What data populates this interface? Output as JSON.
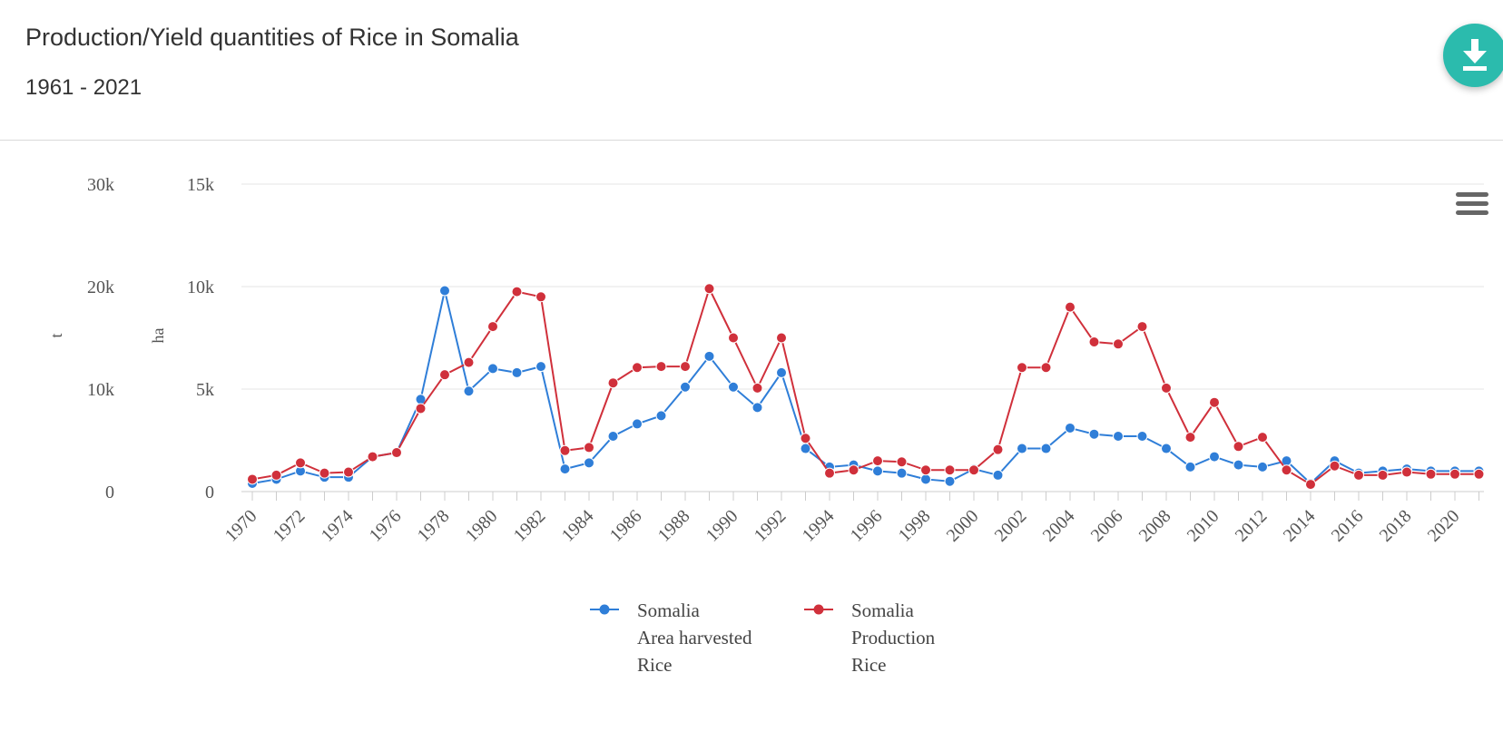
{
  "header": {
    "title": "Production/Yield quantities of Rice in Somalia",
    "subtitle": "1961 - 2021"
  },
  "toolbar": {
    "download_icon": "download-icon",
    "menu_icon": "hamburger-menu-icon"
  },
  "chart_data": {
    "type": "line",
    "x": [
      1970,
      1971,
      1972,
      1973,
      1974,
      1975,
      1976,
      1977,
      1978,
      1979,
      1980,
      1981,
      1982,
      1983,
      1984,
      1985,
      1986,
      1987,
      1988,
      1989,
      1990,
      1991,
      1992,
      1993,
      1994,
      1995,
      1996,
      1997,
      1998,
      1999,
      2000,
      2001,
      2002,
      2003,
      2004,
      2005,
      2006,
      2007,
      2008,
      2009,
      2010,
      2011,
      2012,
      2013,
      2014,
      2015,
      2016,
      2017,
      2018,
      2019,
      2020,
      2021
    ],
    "x_tick_labels": [
      "1970",
      "1972",
      "1974",
      "1976",
      "1978",
      "1980",
      "1982",
      "1984",
      "1986",
      "1988",
      "1990",
      "1992",
      "1994",
      "1996",
      "1998",
      "2000",
      "2002",
      "2004",
      "2006",
      "2008",
      "2010",
      "2012",
      "2014",
      "2016",
      "2018",
      "2020"
    ],
    "axes": {
      "left_outer": {
        "label": "t",
        "range": [
          0,
          30000
        ],
        "ticks": [
          "0",
          "10k",
          "20k",
          "30k"
        ],
        "tick_values": [
          0,
          10000,
          20000,
          30000
        ]
      },
      "left_inner": {
        "label": "ha",
        "range": [
          0,
          15000
        ],
        "ticks": [
          "0",
          "5k",
          "10k",
          "15k"
        ],
        "tick_values": [
          0,
          5000,
          10000,
          15000
        ]
      }
    },
    "grid": true,
    "legend_position": "bottom-center",
    "series": [
      {
        "name_lines": [
          "Somalia",
          "Area harvested",
          "Rice"
        ],
        "axis": "ha",
        "color": "#2f7ed8",
        "values": [
          400,
          600,
          1000,
          700,
          700,
          1700,
          1900,
          4500,
          9800,
          4900,
          6000,
          5800,
          6100,
          1100,
          1400,
          2700,
          3300,
          3700,
          5100,
          6600,
          5100,
          4100,
          5800,
          2100,
          1200,
          1300,
          1000,
          900,
          600,
          500,
          1100,
          800,
          2100,
          2100,
          3100,
          2800,
          2700,
          2700,
          2100,
          1200,
          1700,
          1300,
          1200,
          1500,
          400,
          1500,
          900,
          1000,
          1100,
          1000,
          1000,
          1000
        ]
      },
      {
        "name_lines": [
          "Somalia",
          "Production",
          "Rice"
        ],
        "axis": "t",
        "color": "#d0303b",
        "values": [
          1200,
          1600,
          2800,
          1800,
          1900,
          3400,
          3800,
          8100,
          11400,
          12600,
          16100,
          19500,
          19000,
          4000,
          4300,
          10600,
          12100,
          12200,
          12200,
          19800,
          15000,
          10100,
          15000,
          5200,
          1800,
          2100,
          3000,
          2900,
          2100,
          2100,
          2100,
          4100,
          12100,
          12100,
          18000,
          14600,
          14400,
          16100,
          10100,
          5300,
          8700,
          4400,
          5300,
          2100,
          700,
          2500,
          1600,
          1600,
          1900,
          1700,
          1700,
          1700
        ]
      }
    ]
  }
}
